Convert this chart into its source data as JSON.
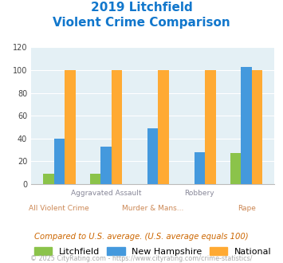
{
  "title_line1": "2019 Litchfield",
  "title_line2": "Violent Crime Comparison",
  "litchfield": [
    9,
    9,
    0,
    0,
    27
  ],
  "new_hampshire": [
    40,
    33,
    49,
    28,
    103
  ],
  "national": [
    100,
    100,
    100,
    100,
    100
  ],
  "color_litchfield": "#8bc34a",
  "color_nh": "#4499dd",
  "color_national": "#ffaa33",
  "color_title": "#1177cc",
  "color_bg": "#e4f0f5",
  "color_note": "#cc6600",
  "color_footer": "#aaaaaa",
  "color_toplabel": "#888899",
  "color_botlabel": "#cc8855",
  "ylim": [
    0,
    120
  ],
  "yticks": [
    0,
    20,
    40,
    60,
    80,
    100,
    120
  ],
  "top_labels": [
    "",
    "Aggravated Assault",
    "",
    "Robbery",
    ""
  ],
  "bot_labels": [
    "All Violent Crime",
    "",
    "Murder & Mans...",
    "",
    "Rape"
  ],
  "legend_labels": [
    "Litchfield",
    "New Hampshire",
    "National"
  ],
  "note_text": "Compared to U.S. average. (U.S. average equals 100)",
  "footer_text": "© 2025 CityRating.com - https://www.cityrating.com/crime-statistics/"
}
